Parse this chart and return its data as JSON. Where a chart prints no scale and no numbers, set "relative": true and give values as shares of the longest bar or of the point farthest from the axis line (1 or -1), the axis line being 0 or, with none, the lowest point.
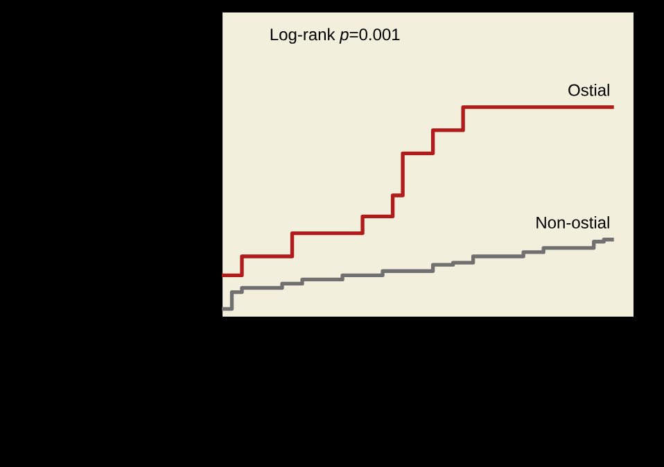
{
  "chart_data": {
    "type": "step",
    "relative": true,
    "annotations": [
      "Log-rank *p*=0.001"
    ],
    "categories": [
      null,
      null,
      null,
      null,
      null,
      null,
      null,
      null,
      null,
      null,
      null,
      null,
      null,
      null,
      null,
      null,
      null,
      null,
      null,
      null,
      null,
      null,
      null,
      null,
      null,
      null,
      null,
      null,
      null,
      null,
      null,
      null,
      null,
      null,
      null,
      null,
      null,
      null,
      null,
      null
    ],
    "series": [
      {
        "name": "Ostial",
        "color": "#b01c1c",
        "values": [
          0.2,
          0.2,
          0.29,
          0.29,
          0.29,
          0.29,
          0.29,
          0.4,
          0.4,
          0.4,
          0.4,
          0.4,
          0.4,
          0.4,
          0.48,
          0.48,
          0.48,
          0.58,
          0.78,
          0.78,
          0.78,
          0.89,
          0.89,
          0.89,
          1.0,
          1.0,
          1.0,
          1.0,
          1.0,
          1.0,
          1.0,
          1.0,
          1.0,
          1.0,
          1.0,
          1.0,
          1.0,
          1.0,
          1.0,
          1.0
        ]
      },
      {
        "name": "Non-ostial",
        "color": "#707070",
        "values": [
          0.04,
          0.12,
          0.14,
          0.14,
          0.14,
          0.14,
          0.16,
          0.16,
          0.18,
          0.18,
          0.18,
          0.18,
          0.2,
          0.2,
          0.2,
          0.2,
          0.22,
          0.22,
          0.22,
          0.22,
          0.22,
          0.25,
          0.25,
          0.26,
          0.26,
          0.29,
          0.29,
          0.29,
          0.29,
          0.29,
          0.31,
          0.31,
          0.33,
          0.33,
          0.33,
          0.33,
          0.33,
          0.36,
          0.37,
          0.37
        ]
      }
    ]
  }
}
